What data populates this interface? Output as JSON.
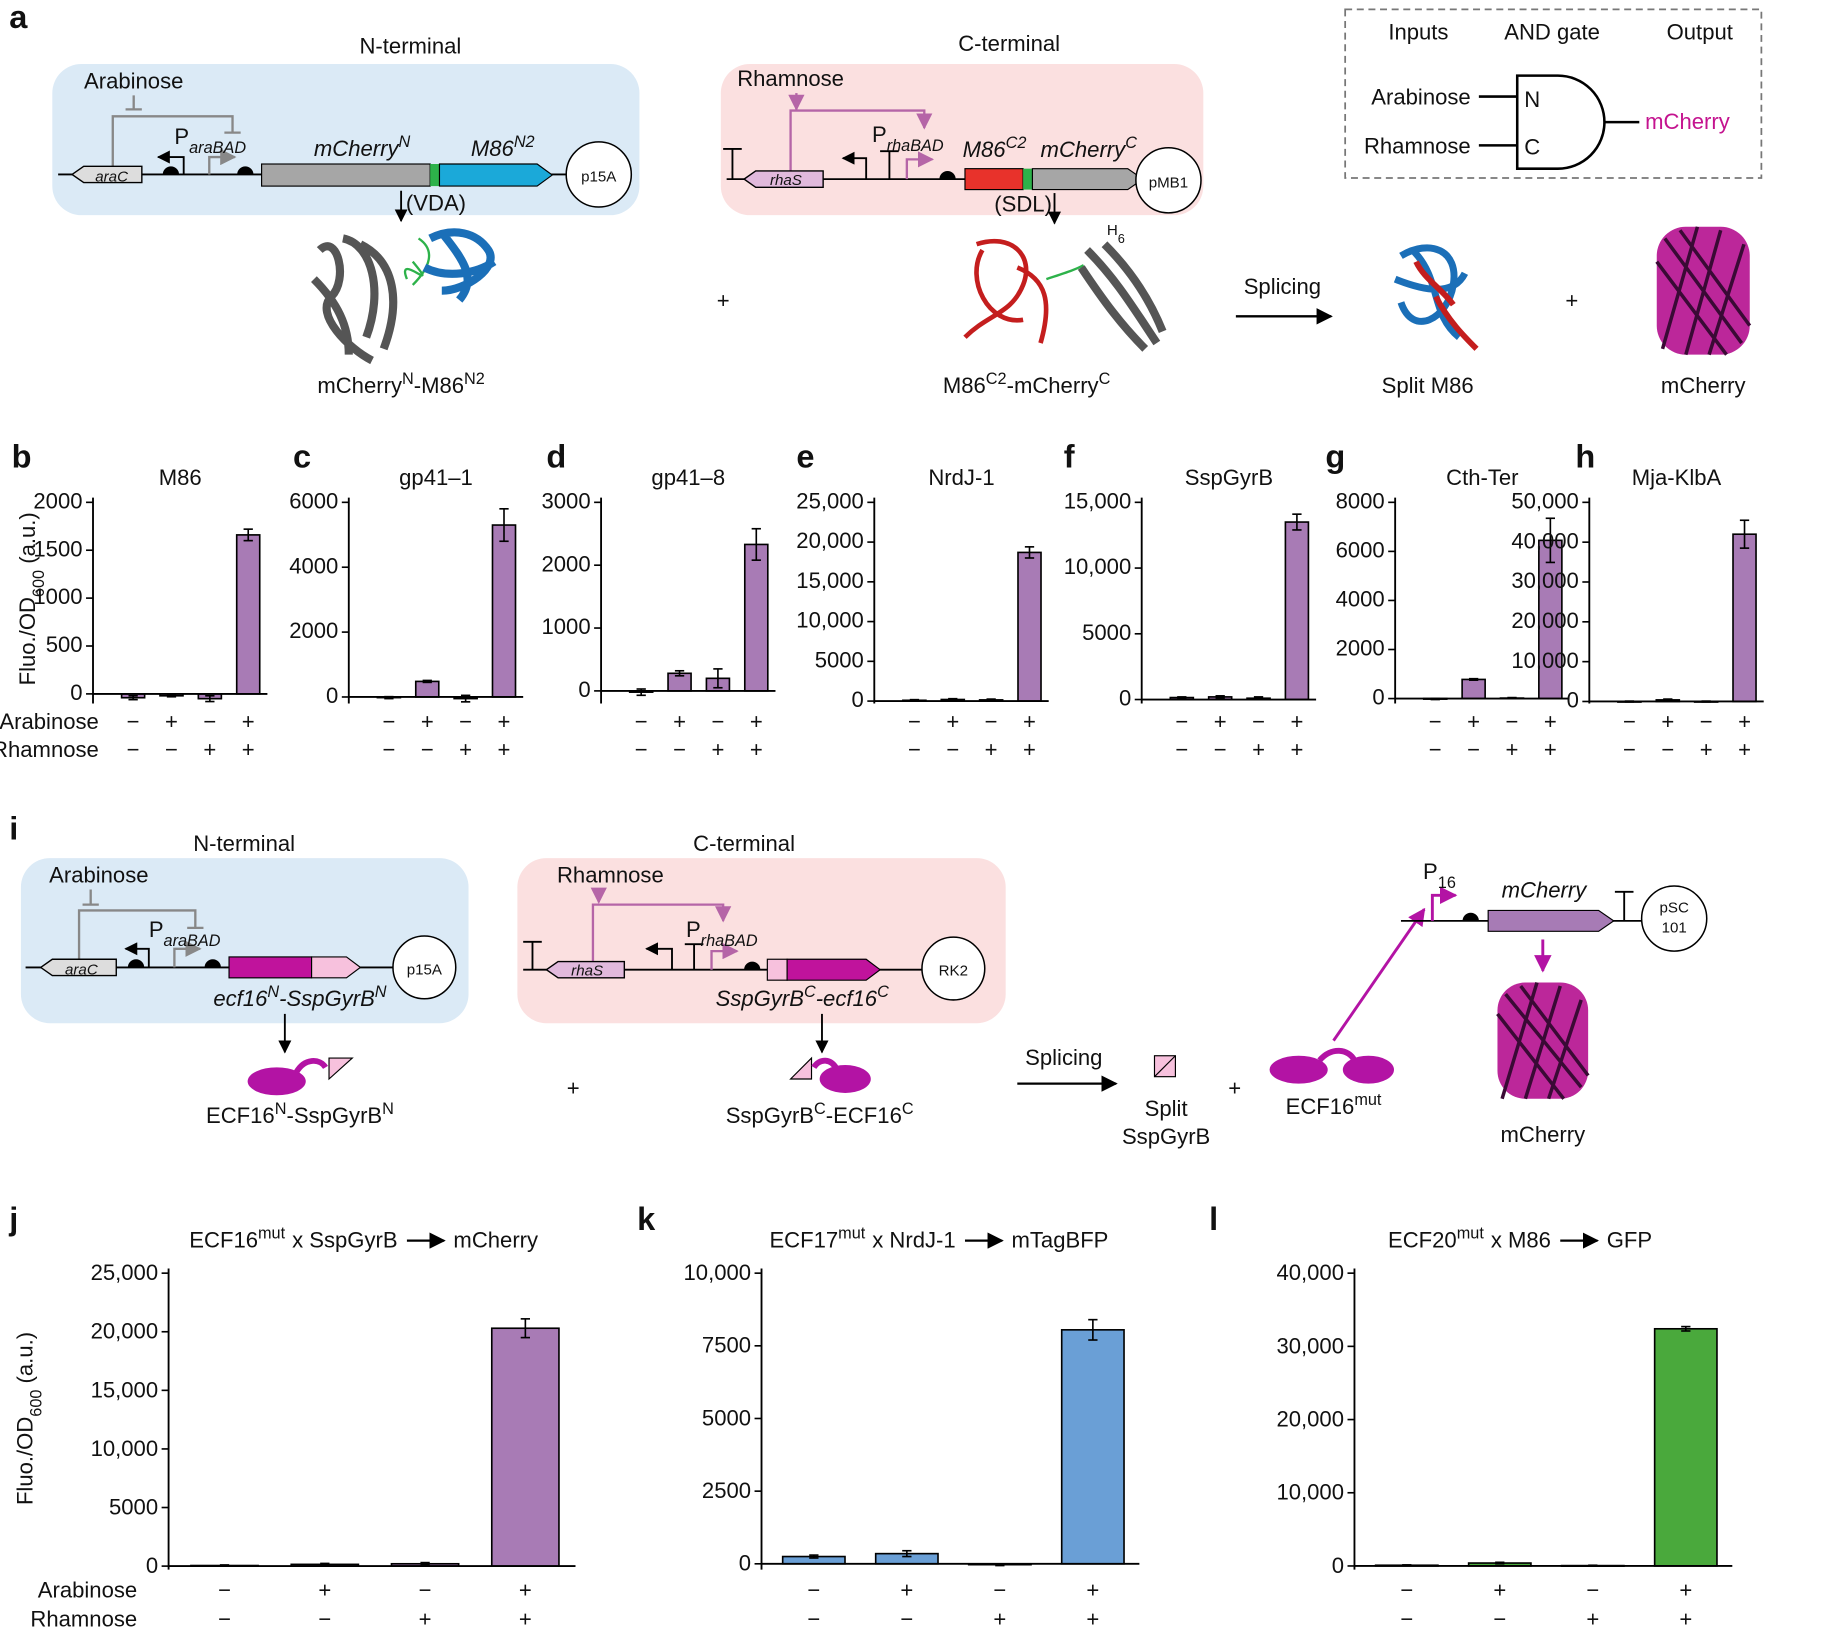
{
  "figure": {
    "a": {
      "panel": "a",
      "n_terminal": {
        "title": "N-terminal",
        "inducer": "Arabinose",
        "promoter": [
          "P",
          "araBAD"
        ],
        "regulator": "araC",
        "gene": [
          "mCherry",
          "N"
        ],
        "gene2": [
          "M86",
          "N2"
        ],
        "plasmid": "p15A",
        "linker": "(VDA)",
        "product": [
          "mCherry",
          "N",
          "-M86",
          "N2"
        ]
      },
      "c_terminal": {
        "title": "C-terminal",
        "inducer": "Rhamnose",
        "promoter": [
          "P",
          "rhaBAD"
        ],
        "regulator": "rhaS",
        "gene": [
          "M86",
          "C2"
        ],
        "gene2": [
          "mCherry",
          "C"
        ],
        "plasmid": "pMB1",
        "linker": "(SDL)",
        "tag": [
          "H",
          "6"
        ],
        "product": [
          "M86",
          "C2",
          "-mCherry",
          "C"
        ]
      },
      "plus": [
        "+",
        "+"
      ],
      "splicing": "Splicing",
      "split": "Split M86",
      "output": "mCherry",
      "gate": {
        "headers": [
          "Inputs",
          "AND gate",
          "Output"
        ],
        "inputs": [
          "Arabinose",
          "Rhamnose"
        ],
        "pins": [
          "N",
          "C"
        ],
        "output": "mCherry"
      }
    },
    "i": {
      "panel": "i",
      "n_terminal": {
        "title": "N-terminal",
        "inducer": "Arabinose",
        "promoter": [
          "P",
          "araBAD"
        ],
        "regulator": "araC",
        "plasmid": "p15A",
        "gene": [
          "ecf16",
          "N",
          "-SspGyrB",
          "N"
        ],
        "product": [
          "ECF16",
          "N",
          "-SspGyrB",
          "N"
        ]
      },
      "c_terminal": {
        "title": "C-terminal",
        "inducer": "Rhamnose",
        "promoter": [
          "P",
          "rhaBAD"
        ],
        "regulator": "rhaS",
        "plasmid": "RK2",
        "gene": [
          "SspGyrB",
          "C",
          "-ecf16",
          "C"
        ],
        "product": [
          "SspGyrB",
          "C",
          "-ECF16",
          "C"
        ]
      },
      "plus": [
        "+",
        "+"
      ],
      "splicing": "Splicing",
      "split": [
        "Split",
        "SspGyrB"
      ],
      "factor": [
        "ECF16",
        "mut"
      ],
      "reporter": {
        "promoter": [
          "P",
          "16"
        ],
        "gene": "mCherry",
        "plasmid": [
          "pSC",
          "101"
        ],
        "output": "mCherry"
      }
    }
  },
  "ylabel": [
    "Fluo./OD",
    "600",
    "(a.u.)"
  ],
  "conditions": {
    "rows": [
      "Arabinose",
      "Rhamnose"
    ],
    "signs": [
      [
        "−",
        "+",
        "−",
        "+"
      ],
      [
        "−",
        "−",
        "+",
        "+"
      ]
    ]
  },
  "chart_data": [
    {
      "type": "bar",
      "panel": "b",
      "title": "M86",
      "color": "#a87bb5",
      "values": [
        -40,
        -20,
        -50,
        1660
      ],
      "errors": [
        20,
        10,
        30,
        60
      ],
      "ylim": [
        -100,
        2000
      ],
      "yticks": [
        0,
        500,
        1000,
        1500,
        2000
      ]
    },
    {
      "type": "bar",
      "panel": "c",
      "title": "gp41–1",
      "color": "#a87bb5",
      "values": [
        -20,
        480,
        -50,
        5300
      ],
      "errors": [
        30,
        30,
        100,
        500
      ],
      "ylim": [
        -200,
        6000
      ],
      "yticks": [
        0,
        2000,
        4000,
        6000
      ]
    },
    {
      "type": "bar",
      "panel": "d",
      "title": "gp41–8",
      "color": "#a87bb5",
      "values": [
        -20,
        280,
        200,
        2330
      ],
      "errors": [
        50,
        40,
        150,
        250
      ],
      "ylim": [
        -200,
        3000
      ],
      "yticks": [
        0,
        1000,
        2000,
        3000
      ]
    },
    {
      "type": "bar",
      "panel": "e",
      "title": "NrdJ-1",
      "color": "#a87bb5",
      "values": [
        100,
        200,
        150,
        18700
      ],
      "errors": [
        80,
        100,
        100,
        700
      ],
      "ylim": [
        -300,
        25000
      ],
      "yticks": [
        0,
        5000,
        {
          "value": 10000,
          "label": "10,000"
        },
        {
          "value": 15000,
          "label": "15,000"
        },
        {
          "value": 20000,
          "label": "20,000"
        },
        {
          "value": 25000,
          "label": "25,000"
        }
      ]
    },
    {
      "type": "bar",
      "panel": "f",
      "title": "SspGyrB",
      "color": "#a87bb5",
      "values": [
        150,
        200,
        100,
        13500
      ],
      "errors": [
        50,
        80,
        100,
        600
      ],
      "ylim": [
        -300,
        15000
      ],
      "yticks": [
        0,
        5000,
        {
          "value": 10000,
          "label": "10,000"
        },
        {
          "value": 15000,
          "label": "15,000"
        }
      ]
    },
    {
      "type": "bar",
      "panel": "g",
      "title": "Cth-Ter",
      "color": "#a87bb5",
      "values": [
        -20,
        780,
        20,
        6450
      ],
      "errors": [
        20,
        30,
        20,
        900
      ],
      "ylim": [
        -200,
        8000
      ],
      "yticks": [
        0,
        2000,
        4000,
        6000,
        8000
      ]
    },
    {
      "type": "bar",
      "panel": "h",
      "title": "Mja-KlbA",
      "color": "#a87bb5",
      "values": [
        0,
        400,
        0,
        42000
      ],
      "errors": [
        100,
        200,
        100,
        3500
      ],
      "ylim": [
        -500,
        50000
      ],
      "yticks": [
        0,
        {
          "value": 10000,
          "label": "10,000"
        },
        {
          "value": 20000,
          "label": "20,000"
        },
        {
          "value": 30000,
          "label": "30,000"
        },
        {
          "value": 40000,
          "label": "40,000"
        },
        {
          "value": 50000,
          "label": "50,000"
        }
      ]
    },
    {
      "type": "bar",
      "panel": "j",
      "title": [
        "ECF16",
        "mut",
        "x SspGyrB",
        "mCherry"
      ],
      "color": "#a87bb5",
      "values": [
        50,
        150,
        200,
        20300
      ],
      "errors": [
        50,
        80,
        100,
        800
      ],
      "ylim": [
        -300,
        25000
      ],
      "yticks": [
        0,
        5000,
        {
          "value": 10000,
          "label": "10,000"
        },
        {
          "value": 15000,
          "label": "15,000"
        },
        {
          "value": 20000,
          "label": "20,000"
        },
        {
          "value": 25000,
          "label": "25,000"
        }
      ]
    },
    {
      "type": "bar",
      "panel": "k",
      "title": [
        "ECF17",
        "mut",
        "x NrdJ-1",
        "mTagBFP"
      ],
      "color": "#6a9fd6",
      "values": [
        250,
        350,
        -30,
        8050
      ],
      "errors": [
        50,
        100,
        30,
        350
      ],
      "ylim": [
        -200,
        10000
      ],
      "yticks": [
        0,
        2500,
        5000,
        7500,
        {
          "value": 10000,
          "label": "10,000"
        }
      ]
    },
    {
      "type": "bar",
      "panel": "l",
      "title": [
        "ECF20",
        "mut",
        "x M86",
        "GFP"
      ],
      "color": "#4aa93c",
      "values": [
        100,
        400,
        50,
        32400
      ],
      "errors": [
        50,
        100,
        50,
        300
      ],
      "ylim": [
        -500,
        40000
      ],
      "yticks": [
        0,
        {
          "value": 10000,
          "label": "10,000"
        },
        {
          "value": 20000,
          "label": "20,000"
        },
        {
          "value": 30000,
          "label": "30,000"
        },
        {
          "value": 40000,
          "label": "40,000"
        }
      ]
    }
  ]
}
